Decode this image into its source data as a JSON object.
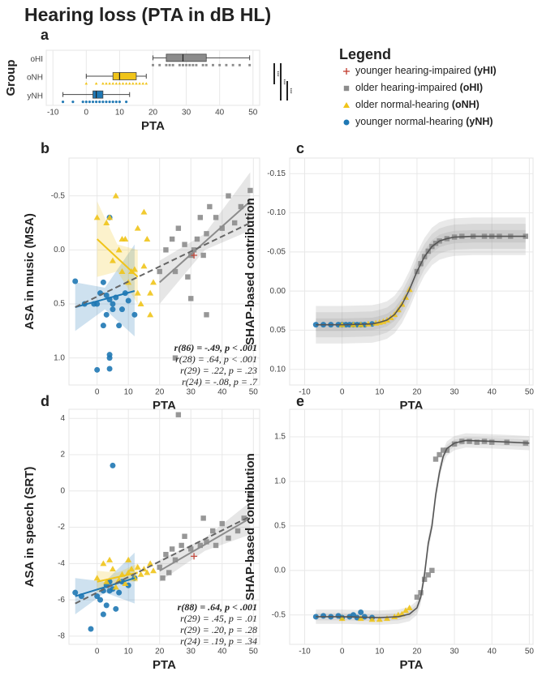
{
  "title": "Hearing loss (PTA in dB HL)",
  "legend": {
    "title": "Legend",
    "entries": [
      {
        "name": "younger hearing-impaired",
        "abbr": "(yHI)",
        "color": "#c0392b",
        "marker": "plus"
      },
      {
        "name": "older hearing-impaired",
        "abbr": "(oHI)",
        "color": "#8c8c8c",
        "marker": "square"
      },
      {
        "name": "older normal-hearing",
        "abbr": "(oNH)",
        "color": "#f0c419",
        "marker": "triangle"
      },
      {
        "name": "younger normal-hearing",
        "abbr": "(yNH)",
        "color": "#1f78b4",
        "marker": "circle"
      }
    ]
  },
  "chart_data": [
    {
      "type": "box",
      "label": "a",
      "xlabel": "PTA",
      "ylabel": "Group",
      "categories": [
        "oHI",
        "oNH",
        "yNH"
      ],
      "xlim": [
        -12,
        52
      ],
      "xticks": [
        -10,
        0,
        10,
        20,
        30,
        40,
        50
      ],
      "grid": true,
      "series": [
        {
          "color": "#8c8c8c",
          "marker": "square",
          "whisker_low": 20,
          "q1": 24,
          "median": 29,
          "q3": 36,
          "whisker_high": 49,
          "points": [
            20,
            22,
            24,
            25,
            26,
            28,
            29,
            30,
            31,
            32,
            33,
            35,
            36,
            38,
            40,
            42,
            44,
            46,
            49
          ]
        },
        {
          "color": "#f0c419",
          "marker": "triangle",
          "whisker_low": 0,
          "q1": 8,
          "median": 10,
          "q3": 15,
          "whisker_high": 18,
          "points": [
            0,
            3,
            5,
            6,
            7,
            8,
            9,
            10,
            11,
            12,
            13,
            14,
            15,
            16,
            17,
            18
          ]
        },
        {
          "color": "#1f78b4",
          "marker": "circle",
          "whisker_low": -7,
          "q1": 2,
          "median": 3,
          "q3": 5,
          "whisker_high": 13,
          "points": [
            -7,
            -4,
            -1,
            0,
            1,
            2,
            3,
            4,
            5,
            6,
            7,
            8,
            9,
            10,
            12
          ]
        }
      ],
      "annotations": [
        "***",
        "***",
        "***"
      ]
    },
    {
      "type": "scatter",
      "label": "b",
      "xlabel": "PTA",
      "ylabel": "ASA in music (MSA)",
      "xlim": [
        -9,
        52
      ],
      "xticks": [
        0,
        10,
        20,
        30,
        40,
        50
      ],
      "ylim": [
        -0.85,
        1.25
      ],
      "y_inverted": true,
      "yticks": [
        {
          "value": -0.5,
          "label": "-0.5"
        },
        {
          "value": 0,
          "label": "0.0"
        },
        {
          "value": 0.5,
          "label": "0.5"
        },
        {
          "value": 1,
          "label": "1.0"
        }
      ],
      "grid": true,
      "series": [
        {
          "color": "#1f78b4",
          "marker": "circle",
          "x": [
            -7,
            -4,
            -1,
            0,
            1,
            2,
            2,
            3,
            3,
            4,
            4,
            4,
            4,
            5,
            5,
            6,
            7,
            8,
            9,
            0,
            4,
            10,
            12
          ],
          "y": [
            0.29,
            0.5,
            0.5,
            0.5,
            0.4,
            0.7,
            0.3,
            0.6,
            0.42,
            0.46,
            0.97,
            1.0,
            1.1,
            0.5,
            0.55,
            0.44,
            0.7,
            0.55,
            0.4,
            1.11,
            -0.3,
            0.47,
            0.6
          ]
        },
        {
          "color": "#f0c419",
          "marker": "triangle",
          "x": [
            0,
            3,
            4,
            5,
            6,
            7,
            8,
            9,
            10,
            11,
            12,
            13,
            14,
            15,
            16,
            17,
            18,
            13,
            8,
            15,
            17
          ],
          "y": [
            -0.3,
            -0.25,
            -0.3,
            0.1,
            -0.5,
            0.0,
            0.2,
            -0.1,
            0.3,
            0.2,
            0.18,
            -0.2,
            0.5,
            0.15,
            -0.1,
            0.4,
            0.3,
            0.4,
            -0.1,
            -0.35,
            0.6
          ]
        },
        {
          "color": "#8c8c8c",
          "marker": "square",
          "x": [
            20,
            22,
            24,
            25,
            26,
            28,
            29,
            30,
            31,
            32,
            33,
            34,
            35,
            36,
            38,
            40,
            42,
            44,
            46,
            49,
            25,
            30,
            35
          ],
          "y": [
            0.2,
            0.0,
            -0.1,
            0.2,
            -0.2,
            -0.05,
            0.25,
            0.05,
            0.0,
            -0.1,
            -0.3,
            0.05,
            -0.15,
            -0.4,
            -0.3,
            -0.2,
            -0.5,
            -0.25,
            -0.4,
            -0.55,
            1.0,
            0.45,
            0.6
          ]
        },
        {
          "color": "#c0392b",
          "marker": "plus",
          "x": [
            31
          ],
          "y": [
            0.05
          ]
        }
      ],
      "fits": [
        {
          "color": "#1f78b4",
          "x": [
            -7,
            2.5,
            12
          ],
          "y": [
            0.53,
            0.455,
            0.38
          ],
          "ci_lower": [
            0.3,
            0.35,
            -0.05
          ],
          "ci_upper": [
            0.75,
            0.55,
            0.8
          ]
        },
        {
          "color": "#f0c419",
          "x": [
            0,
            6.5,
            13
          ],
          "y": [
            -0.1,
            0.075,
            0.25
          ],
          "ci_lower": [
            -0.45,
            -0.05,
            0.0
          ],
          "ci_upper": [
            0.25,
            0.2,
            0.5
          ]
        },
        {
          "color": "#8c8c8c",
          "x": [
            20,
            34.5,
            49
          ],
          "y": [
            0.3,
            -0.075,
            -0.45
          ],
          "ci_lower": [
            0.1,
            -0.15,
            -0.72
          ],
          "ci_upper": [
            0.5,
            0.0,
            -0.18
          ]
        },
        {
          "color": "#666666",
          "dashed": true,
          "x": [
            -7,
            21,
            49
          ],
          "y": [
            0.53,
            0.14,
            -0.25
          ]
        }
      ],
      "stats": [
        {
          "text": "r(86) = -.49, p < .001",
          "color": "#222222"
        },
        {
          "text": "r(28) = .64, p < .001",
          "color": "#8c8c8c"
        },
        {
          "text": "r(29) = .22, p = .23",
          "color": "#e0b400"
        },
        {
          "text": "r(24) = -.08, p = .7",
          "color": "#1f78b4"
        }
      ]
    },
    {
      "type": "curve",
      "label": "c",
      "xlabel": "PTA",
      "ylabel": "SHAP-based contribution",
      "xlim": [
        -14,
        51
      ],
      "xticks": [
        -10,
        0,
        10,
        20,
        30,
        40,
        50
      ],
      "ylim": [
        -0.17,
        0.12
      ],
      "y_inverted": true,
      "yticks": [
        {
          "value": -0.15,
          "label": "-0.15"
        },
        {
          "value": -0.1,
          "label": "-0.10"
        },
        {
          "value": -0.05,
          "label": "-0.05"
        },
        {
          "value": 0,
          "label": "0.00"
        },
        {
          "value": 0.05,
          "label": "0.05"
        },
        {
          "value": 0.1,
          "label": "0.10"
        }
      ],
      "grid": true,
      "curve": {
        "x": [
          -7,
          0,
          8,
          10,
          12,
          14,
          16,
          18,
          20,
          22,
          24,
          26,
          28,
          30,
          35,
          49
        ],
        "y": [
          0.043,
          0.043,
          0.042,
          0.04,
          0.037,
          0.03,
          0.017,
          -0.002,
          -0.025,
          -0.044,
          -0.057,
          -0.064,
          -0.067,
          -0.069,
          -0.07,
          -0.07
        ]
      },
      "bands": [
        0.008,
        0.016,
        0.024
      ],
      "series": [
        {
          "color": "#1f78b4",
          "marker": "circle",
          "x": [
            -7,
            -5,
            -3,
            -1,
            0,
            1,
            2,
            3,
            4,
            5,
            6,
            8
          ],
          "y": [
            0.043,
            0.043,
            0.043,
            0.043,
            0.043,
            0.043,
            0.043,
            0.043,
            0.043,
            0.043,
            0.043,
            0.042
          ]
        },
        {
          "color": "#f0c419",
          "marker": "triangle",
          "x": [
            0,
            3,
            5,
            7,
            9,
            10,
            11,
            12,
            13,
            14,
            15,
            16,
            17,
            18
          ],
          "y": [
            0.043,
            0.043,
            0.043,
            0.042,
            0.041,
            0.04,
            0.039,
            0.037,
            0.034,
            0.03,
            0.024,
            0.017,
            0.008,
            -0.002
          ]
        },
        {
          "color": "#8c8c8c",
          "marker": "square",
          "x": [
            20,
            21,
            22,
            23,
            24,
            25,
            26,
            28,
            30,
            32,
            35,
            38,
            40,
            42,
            45,
            49
          ],
          "y": [
            -0.025,
            -0.035,
            -0.044,
            -0.051,
            -0.057,
            -0.061,
            -0.064,
            -0.067,
            -0.069,
            -0.07,
            -0.07,
            -0.07,
            -0.07,
            -0.07,
            -0.07,
            -0.07
          ]
        }
      ]
    },
    {
      "type": "scatter",
      "label": "d",
      "xlabel": "PTA",
      "ylabel": "ASA in speech (SRT)",
      "xlim": [
        -9,
        52
      ],
      "xticks": [
        0,
        10,
        20,
        30,
        40,
        50
      ],
      "ylim": [
        -8.45,
        4.5
      ],
      "yticks": [
        4,
        2,
        0,
        -2,
        -4,
        -6,
        -8
      ],
      "grid": true,
      "series": [
        {
          "color": "#1f78b4",
          "marker": "circle",
          "x": [
            -7,
            -5,
            -2,
            0,
            1,
            2,
            3,
            3,
            4,
            4,
            5,
            5,
            6,
            7,
            8,
            10,
            12,
            2
          ],
          "y": [
            -5.6,
            -5.8,
            -7.6,
            -5.8,
            -6,
            -5.5,
            -5.2,
            -6.3,
            -5,
            -5.5,
            -5.4,
            1.4,
            -6.5,
            -5.6,
            -5,
            -5.2,
            -4.8,
            -6.8
          ]
        },
        {
          "color": "#f0c419",
          "marker": "triangle",
          "x": [
            0,
            2,
            3,
            4,
            5,
            6,
            7,
            8,
            9,
            10,
            11,
            12,
            13,
            14,
            15,
            16,
            17,
            18,
            10
          ],
          "y": [
            -4.8,
            -4,
            -5,
            -3.8,
            -4.3,
            -5.3,
            -4.9,
            -4.6,
            -5.1,
            -4.5,
            -4.3,
            -4.8,
            -4.2,
            -4.6,
            -4.3,
            -4.5,
            -4,
            -4.4,
            -3.8
          ]
        },
        {
          "color": "#8c8c8c",
          "marker": "square",
          "x": [
            20,
            21,
            22,
            23,
            24,
            25,
            26,
            27,
            28,
            30,
            33,
            35,
            37,
            38,
            40,
            42,
            45,
            47,
            49,
            34
          ],
          "y": [
            -4.2,
            -4.8,
            -3.5,
            -4.5,
            -3.2,
            -3.8,
            4.2,
            -3,
            -2.5,
            -3.2,
            -3,
            -2.8,
            -2.2,
            -3,
            -1.8,
            -2.6,
            -2.2,
            -1.5,
            -0.2,
            -1.5
          ]
        },
        {
          "color": "#c0392b",
          "marker": "plus",
          "x": [
            31
          ],
          "y": [
            -3.6
          ]
        }
      ],
      "fits": [
        {
          "color": "#1f78b4",
          "x": [
            -7,
            2.5,
            12
          ],
          "y": [
            -5.8,
            -5.3,
            -4.8
          ],
          "ci_lower": [
            -6.8,
            -5.6,
            -6.2
          ],
          "ci_upper": [
            -4.8,
            -5.0,
            -3.4
          ]
        },
        {
          "color": "#f0c419",
          "x": [
            0,
            6.5,
            13
          ],
          "y": [
            -5,
            -4.75,
            -4.5
          ],
          "ci_lower": [
            -5.6,
            -5.0,
            -5.0
          ],
          "ci_upper": [
            -4.4,
            -4.5,
            -4.0
          ]
        },
        {
          "color": "#8c8c8c",
          "x": [
            20,
            34.5,
            49
          ],
          "y": [
            -4.4,
            -2.95,
            -1.5
          ],
          "ci_lower": [
            -5.0,
            -3.3,
            -2.4
          ],
          "ci_upper": [
            -3.8,
            -2.6,
            -0.6
          ]
        },
        {
          "color": "#666666",
          "dashed": true,
          "x": [
            -7,
            21,
            49
          ],
          "y": [
            -6.2,
            -3.8,
            -1.4
          ]
        }
      ],
      "stats": [
        {
          "text": "r(88) = .64, p < .001",
          "color": "#222222"
        },
        {
          "text": "r(29) = .45, p = .01",
          "color": "#8c8c8c"
        },
        {
          "text": "r(29) = .20, p = .28",
          "color": "#e0b400"
        },
        {
          "text": "r(24) = .19, p = .34",
          "color": "#1f78b4"
        }
      ]
    },
    {
      "type": "curve",
      "label": "e",
      "xlabel": "PTA",
      "ylabel": "SHAP-based contribution",
      "xlim": [
        -14,
        51
      ],
      "xticks": [
        -10,
        0,
        10,
        20,
        30,
        40,
        50
      ],
      "ylim": [
        -0.83,
        1.81
      ],
      "yticks": [
        -0.5,
        {
          "value": 0,
          "label": "0.0"
        },
        0.5,
        {
          "value": 1,
          "label": "1.0"
        },
        1.5
      ],
      "grid": true,
      "curve": {
        "x": [
          -7,
          0,
          10,
          15,
          18,
          20,
          21,
          22,
          23,
          24,
          25,
          26,
          27,
          28,
          30,
          33,
          40,
          50
        ],
        "y": [
          -0.52,
          -0.52,
          -0.53,
          -0.52,
          -0.49,
          -0.42,
          -0.3,
          -0.05,
          0.3,
          0.5,
          0.85,
          1.1,
          1.28,
          1.37,
          1.43,
          1.46,
          1.45,
          1.43
        ]
      },
      "bands": [
        0.04,
        0.08
      ],
      "series": [
        {
          "color": "#1f78b4",
          "marker": "circle",
          "x": [
            -7,
            -5,
            -3,
            -1,
            0,
            2,
            3,
            4,
            5,
            6,
            8
          ],
          "y": [
            -0.52,
            -0.51,
            -0.52,
            -0.51,
            -0.53,
            -0.52,
            -0.5,
            -0.53,
            -0.47,
            -0.52,
            -0.53
          ]
        },
        {
          "color": "#f0c419",
          "marker": "triangle",
          "x": [
            0,
            5,
            8,
            10,
            12,
            14,
            15,
            16,
            17,
            18
          ],
          "y": [
            -0.54,
            -0.54,
            -0.55,
            -0.55,
            -0.54,
            -0.52,
            -0.5,
            -0.49,
            -0.45,
            -0.42
          ]
        },
        {
          "color": "#8c8c8c",
          "marker": "square",
          "x": [
            20,
            21,
            22,
            23,
            24,
            25,
            26,
            27,
            28,
            30,
            32,
            34,
            36,
            38,
            40,
            44,
            49
          ],
          "y": [
            -0.3,
            -0.25,
            -0.1,
            -0.05,
            0.0,
            1.25,
            1.3,
            1.35,
            1.35,
            1.42,
            1.45,
            1.45,
            1.44,
            1.45,
            1.44,
            1.44,
            1.43
          ]
        }
      ]
    }
  ]
}
